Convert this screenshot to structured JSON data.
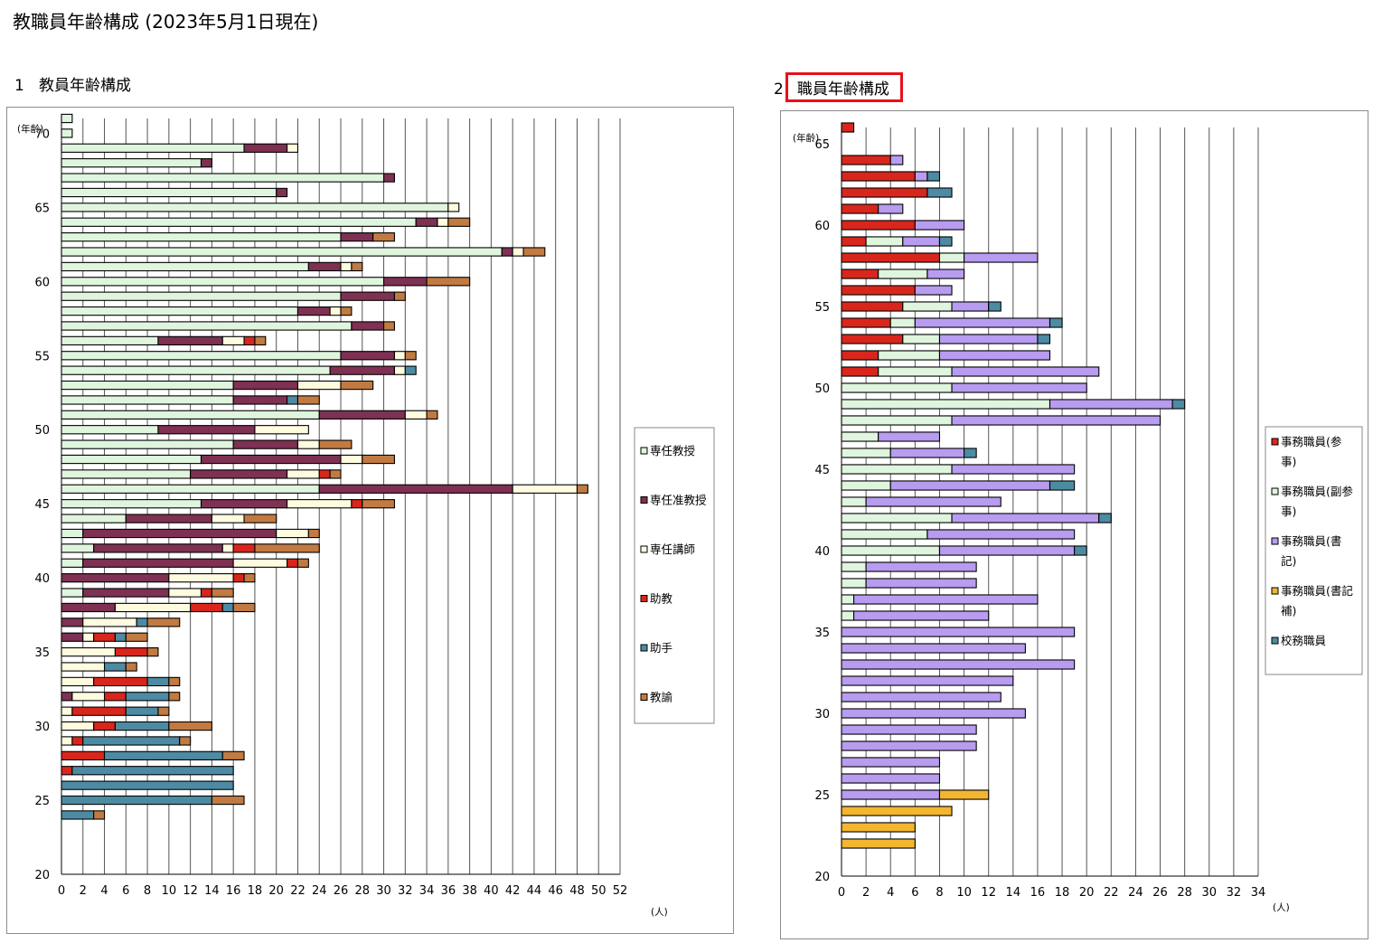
{
  "page": {
    "title": "教職員年齢構成 (2023年5月1日現在)",
    "section1_number": "1",
    "section1_title": "教員年齢構成",
    "section2_number": "2",
    "section2_title": "職員年齢構成"
  },
  "chart_data": [
    {
      "type": "bar",
      "stacked": true,
      "orientation": "horizontal",
      "title": "教員年齢構成",
      "ylabel": "(年齢)",
      "xlabel": "(人)",
      "xlim": [
        0,
        52
      ],
      "x_ticks": [
        0,
        2,
        4,
        6,
        8,
        10,
        12,
        14,
        16,
        18,
        20,
        22,
        24,
        26,
        28,
        30,
        32,
        34,
        36,
        38,
        40,
        42,
        44,
        46,
        48,
        50,
        52
      ],
      "ylim": [
        20,
        71
      ],
      "y_ticks": [
        20,
        25,
        30,
        35,
        40,
        45,
        50,
        55,
        60,
        65,
        70
      ],
      "grid": true,
      "legend_position": "right",
      "series": [
        {
          "name": "専任教授",
          "color": "#dff5dd"
        },
        {
          "name": "専任准教授",
          "color": "#7e3152"
        },
        {
          "name": "専任講師",
          "color": "#fffbdf"
        },
        {
          "name": "助教",
          "color": "#d9261c"
        },
        {
          "name": "助手",
          "color": "#4d8ba3"
        },
        {
          "name": "教諭",
          "color": "#c17a42"
        }
      ],
      "ages": [
        71,
        70,
        69,
        68,
        67,
        66,
        65,
        64,
        63,
        62,
        61,
        60,
        59,
        58,
        57,
        56,
        55,
        54,
        53,
        52,
        51,
        50,
        49,
        48,
        47,
        46,
        45,
        44,
        43,
        42,
        41,
        40,
        39,
        38,
        37,
        36,
        35,
        34,
        33,
        32,
        31,
        30,
        29,
        28,
        27,
        26,
        25,
        24
      ],
      "values": [
        [
          1,
          0,
          0,
          0,
          0,
          0
        ],
        [
          1,
          0,
          0,
          0,
          0,
          0
        ],
        [
          17,
          4,
          1,
          0,
          0,
          0
        ],
        [
          13,
          1,
          0,
          0,
          0,
          0
        ],
        [
          30,
          1,
          0,
          0,
          0,
          0
        ],
        [
          20,
          1,
          0,
          0,
          0,
          0
        ],
        [
          36,
          0,
          1,
          0,
          0,
          0
        ],
        [
          33,
          2,
          1,
          0,
          0,
          2
        ],
        [
          26,
          3,
          0,
          0,
          0,
          2
        ],
        [
          41,
          1,
          1,
          0,
          0,
          2
        ],
        [
          23,
          3,
          1,
          0,
          0,
          1
        ],
        [
          30,
          4,
          0,
          0,
          0,
          4
        ],
        [
          26,
          5,
          0,
          0,
          0,
          1
        ],
        [
          22,
          3,
          1,
          0,
          0,
          1
        ],
        [
          27,
          3,
          0,
          0,
          0,
          1
        ],
        [
          9,
          6,
          2,
          1,
          0,
          1
        ],
        [
          26,
          5,
          1,
          0,
          0,
          1
        ],
        [
          25,
          6,
          1,
          0,
          1,
          0
        ],
        [
          16,
          6,
          4,
          0,
          0,
          3
        ],
        [
          16,
          5,
          0,
          0,
          1,
          2
        ],
        [
          24,
          8,
          2,
          0,
          0,
          1
        ],
        [
          9,
          9,
          5,
          0,
          0,
          0
        ],
        [
          16,
          6,
          2,
          0,
          0,
          3
        ],
        [
          13,
          13,
          2,
          0,
          0,
          3
        ],
        [
          12,
          9,
          3,
          1,
          0,
          1
        ],
        [
          24,
          18,
          6,
          0,
          0,
          1
        ],
        [
          13,
          8,
          6,
          1,
          0,
          3
        ],
        [
          6,
          8,
          3,
          0,
          0,
          3
        ],
        [
          2,
          18,
          3,
          0,
          0,
          1
        ],
        [
          3,
          12,
          1,
          2,
          0,
          6
        ],
        [
          2,
          14,
          5,
          1,
          0,
          1
        ],
        [
          0,
          10,
          6,
          1,
          0,
          1
        ],
        [
          2,
          8,
          3,
          1,
          0,
          2
        ],
        [
          0,
          5,
          7,
          3,
          1,
          2
        ],
        [
          0,
          2,
          5,
          0,
          1,
          3
        ],
        [
          0,
          2,
          1,
          2,
          1,
          2
        ],
        [
          0,
          0,
          5,
          3,
          0,
          1
        ],
        [
          0,
          0,
          4,
          0,
          2,
          1
        ],
        [
          0,
          0,
          3,
          5,
          2,
          1
        ],
        [
          0,
          1,
          3,
          2,
          4,
          1
        ],
        [
          0,
          0,
          1,
          5,
          3,
          1
        ],
        [
          0,
          0,
          3,
          2,
          5,
          4
        ],
        [
          0,
          0,
          1,
          1,
          9,
          1
        ],
        [
          0,
          0,
          0,
          4,
          11,
          2
        ],
        [
          0,
          0,
          0,
          1,
          15,
          0
        ],
        [
          0,
          0,
          0,
          0,
          16,
          0
        ],
        [
          0,
          0,
          0,
          0,
          14,
          3
        ],
        [
          0,
          0,
          0,
          0,
          3,
          1
        ]
      ]
    },
    {
      "type": "bar",
      "stacked": true,
      "orientation": "horizontal",
      "title": "職員年齢構成",
      "ylabel": "(年齢)",
      "xlabel": "(人)",
      "xlim": [
        0,
        34
      ],
      "x_ticks": [
        0,
        2,
        4,
        6,
        8,
        10,
        12,
        14,
        16,
        18,
        20,
        22,
        24,
        26,
        28,
        30,
        32,
        34
      ],
      "ylim": [
        20,
        66
      ],
      "y_ticks": [
        20,
        25,
        30,
        35,
        40,
        45,
        50,
        55,
        60,
        65
      ],
      "grid": true,
      "legend_position": "right",
      "series": [
        {
          "name": "事務職員(参事)",
          "legend_lines": [
            "事務職員(参",
            "事)"
          ],
          "color": "#d9261c"
        },
        {
          "name": "事務職員(副参事)",
          "legend_lines": [
            "事務職員(副参",
            "事)"
          ],
          "color": "#dff5dd"
        },
        {
          "name": "事務職員(書記)",
          "legend_lines": [
            "事務職員(書",
            "記)"
          ],
          "color": "#b79cf0"
        },
        {
          "name": "事務職員(書記補)",
          "legend_lines": [
            "事務職員(書記",
            "補)"
          ],
          "color": "#f2b630"
        },
        {
          "name": "校務職員",
          "legend_lines": [
            "校務職員"
          ],
          "color": "#4d8ba3"
        }
      ],
      "ages": [
        66,
        64,
        63,
        62,
        61,
        60,
        59,
        58,
        57,
        56,
        55,
        54,
        53,
        52,
        51,
        50,
        49,
        48,
        47,
        46,
        45,
        44,
        43,
        42,
        41,
        40,
        39,
        38,
        37,
        36,
        35,
        34,
        33,
        32,
        31,
        30,
        29,
        28,
        27,
        26,
        25,
        24,
        23,
        22
      ],
      "values": [
        [
          1,
          0,
          0,
          0,
          0
        ],
        [
          4,
          0,
          1,
          0,
          0
        ],
        [
          6,
          0,
          1,
          0,
          1
        ],
        [
          7,
          0,
          0,
          0,
          2
        ],
        [
          3,
          0,
          2,
          0,
          0
        ],
        [
          6,
          0,
          4,
          0,
          0
        ],
        [
          2,
          3,
          3,
          0,
          1
        ],
        [
          8,
          2,
          6,
          0,
          0
        ],
        [
          3,
          4,
          3,
          0,
          0
        ],
        [
          6,
          0,
          3,
          0,
          0
        ],
        [
          5,
          4,
          3,
          0,
          1
        ],
        [
          4,
          2,
          11,
          0,
          1
        ],
        [
          5,
          3,
          8,
          0,
          1
        ],
        [
          3,
          5,
          9,
          0,
          0
        ],
        [
          3,
          6,
          12,
          0,
          0
        ],
        [
          0,
          9,
          11,
          0,
          0
        ],
        [
          0,
          17,
          10,
          0,
          1
        ],
        [
          0,
          9,
          17,
          0,
          0
        ],
        [
          0,
          3,
          5,
          0,
          0
        ],
        [
          0,
          4,
          6,
          0,
          1
        ],
        [
          0,
          9,
          10,
          0,
          0
        ],
        [
          0,
          4,
          13,
          0,
          2
        ],
        [
          0,
          2,
          11,
          0,
          0
        ],
        [
          0,
          9,
          12,
          0,
          1
        ],
        [
          0,
          7,
          12,
          0,
          0
        ],
        [
          0,
          8,
          11,
          0,
          1
        ],
        [
          0,
          2,
          9,
          0,
          0
        ],
        [
          0,
          2,
          9,
          0,
          0
        ],
        [
          0,
          1,
          15,
          0,
          0
        ],
        [
          0,
          1,
          11,
          0,
          0
        ],
        [
          0,
          0,
          19,
          0,
          0
        ],
        [
          0,
          0,
          15,
          0,
          0
        ],
        [
          0,
          0,
          19,
          0,
          0
        ],
        [
          0,
          0,
          14,
          0,
          0
        ],
        [
          0,
          0,
          13,
          0,
          0
        ],
        [
          0,
          0,
          15,
          0,
          0
        ],
        [
          0,
          0,
          11,
          0,
          0
        ],
        [
          0,
          0,
          11,
          0,
          0
        ],
        [
          0,
          0,
          8,
          0,
          0
        ],
        [
          0,
          0,
          8,
          0,
          0
        ],
        [
          0,
          0,
          8,
          4,
          0
        ],
        [
          0,
          0,
          0,
          9,
          0
        ],
        [
          0,
          0,
          0,
          6,
          0
        ],
        [
          0,
          0,
          0,
          6,
          0
        ]
      ]
    }
  ]
}
